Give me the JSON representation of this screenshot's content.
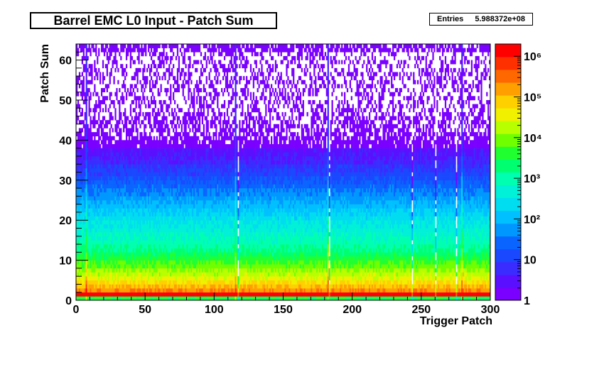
{
  "title": "Barrel EMC L0 Input - Patch Sum",
  "stats": {
    "label": "Entries",
    "value": "5.988372e+08"
  },
  "colors": {
    "palette": [
      "#7a00ff",
      "#5a10ff",
      "#3a2cff",
      "#1a48ff",
      "#0a64ff",
      "#0098ff",
      "#00c0ff",
      "#00dcf0",
      "#00f0d8",
      "#00ffb0",
      "#00ff70",
      "#20ff30",
      "#70ff00",
      "#b8ff00",
      "#f0f000",
      "#ffd000",
      "#ffa000",
      "#ff6800",
      "#ff3000",
      "#ff0000"
    ]
  },
  "chart_data": {
    "type": "heatmap",
    "title": "Barrel EMC L0 Input - Patch Sum",
    "xlabel": "Trigger Patch",
    "ylabel": "Patch Sum",
    "xlim": [
      0,
      300
    ],
    "ylim": [
      0,
      64
    ],
    "x_ticks": [
      0,
      50,
      100,
      150,
      200,
      250,
      300
    ],
    "y_ticks": [
      0,
      10,
      20,
      30,
      40,
      50,
      60
    ],
    "z_scale": "log",
    "z_range": [
      1,
      2000000
    ],
    "z_tick_labels": [
      "1",
      "10",
      "10²",
      "10³",
      "10⁴",
      "10⁵",
      "10⁶"
    ],
    "z_tick_values": [
      1,
      10,
      100,
      1000,
      10000,
      100000,
      1000000
    ],
    "entries": "5.988372e+08",
    "description_profile": {
      "bins_x": 300,
      "bins_y": 64,
      "peak_patch_sum": 1,
      "typical_counts_by_patch_sum": [
        [
          0,
          3000
        ],
        [
          1,
          2000000
        ],
        [
          2,
          200000
        ],
        [
          3,
          100000
        ],
        [
          5,
          30000
        ],
        [
          8,
          8000
        ],
        [
          12,
          1500
        ],
        [
          16,
          600
        ],
        [
          20,
          250
        ],
        [
          25,
          60
        ],
        [
          30,
          15
        ],
        [
          35,
          4
        ],
        [
          40,
          2
        ],
        [
          50,
          1
        ],
        [
          63,
          1
        ]
      ],
      "hot_columns": [
        7,
        115,
        182,
        279
      ],
      "cold_columns": [
        117,
        183,
        243,
        260,
        275
      ]
    }
  }
}
